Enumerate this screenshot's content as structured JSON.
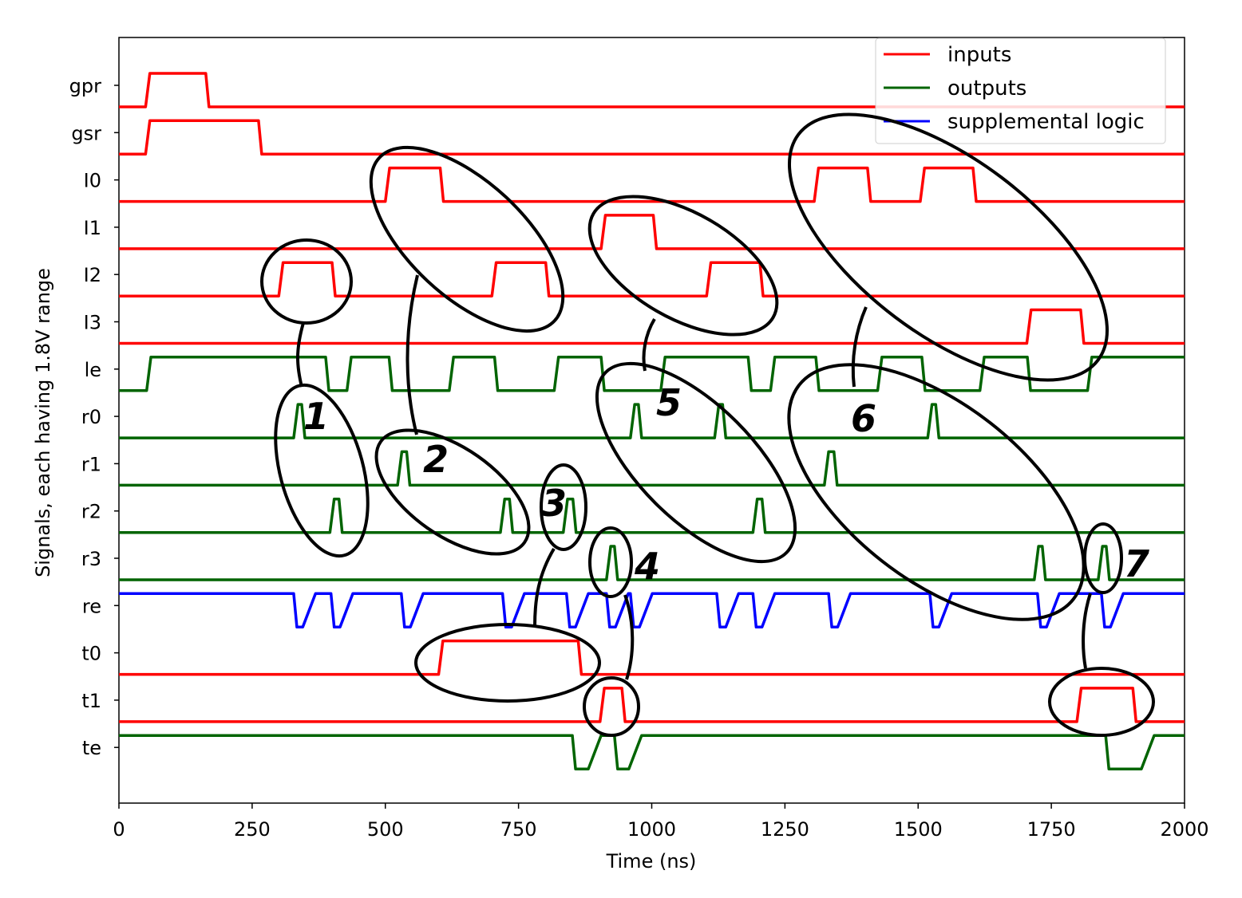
{
  "chart_data": {
    "type": "line",
    "xlabel": "Time (ns)",
    "ylabel": "Signals, each having 1.8V range",
    "xlim": [
      0,
      2000
    ],
    "xticks": [
      0,
      250,
      500,
      750,
      1000,
      1250,
      1500,
      1750,
      2000
    ],
    "grid": false,
    "legend_position": "top-right",
    "legend": [
      {
        "label": "inputs",
        "color": "#ff0000"
      },
      {
        "label": "outputs",
        "color": "#006400"
      },
      {
        "label": "supplemental logic",
        "color": "#0000ff"
      }
    ],
    "signals": [
      {
        "name": "gpr",
        "group": "inputs",
        "idle": 0,
        "toggles": [
          [
            50,
            163
          ]
        ]
      },
      {
        "name": "gsr",
        "group": "inputs",
        "idle": 0,
        "toggles": [
          [
            50,
            262
          ]
        ]
      },
      {
        "name": "I0",
        "group": "inputs",
        "idle": 0,
        "toggles": [
          [
            500,
            603
          ],
          [
            1305,
            1405
          ],
          [
            1504,
            1603
          ]
        ]
      },
      {
        "name": "I1",
        "group": "inputs",
        "idle": 0,
        "toggles": [
          [
            905,
            1003
          ]
        ]
      },
      {
        "name": "I2",
        "group": "inputs",
        "idle": 0,
        "toggles": [
          [
            300,
            400
          ],
          [
            700,
            801
          ],
          [
            1103,
            1203
          ]
        ]
      },
      {
        "name": "I3",
        "group": "inputs",
        "idle": 0,
        "toggles": [
          [
            1704,
            1805
          ]
        ]
      },
      {
        "name": "le",
        "group": "outputs",
        "idle": 0,
        "toggles": [
          [
            52,
            388
          ],
          [
            428,
            507
          ],
          [
            620,
            705
          ],
          [
            817,
            905
          ],
          [
            1017,
            1181
          ],
          [
            1223,
            1308
          ],
          [
            1424,
            1507
          ],
          [
            1616,
            1705
          ],
          [
            1818,
            2000
          ]
        ]
      },
      {
        "name": "r0",
        "group": "outputs",
        "idle": 0,
        "toggles": [
          [
            328,
            343
          ],
          [
            960,
            975
          ],
          [
            1118,
            1133
          ],
          [
            1518,
            1533
          ]
        ]
      },
      {
        "name": "r1",
        "group": "outputs",
        "idle": 0,
        "toggles": [
          [
            523,
            540
          ],
          [
            1324,
            1342
          ]
        ]
      },
      {
        "name": "r2",
        "group": "outputs",
        "idle": 0,
        "toggles": [
          [
            396,
            413
          ],
          [
            716,
            733
          ],
          [
            834,
            852
          ],
          [
            1190,
            1207
          ]
        ]
      },
      {
        "name": "r3",
        "group": "outputs",
        "idle": 0,
        "toggles": [
          [
            915,
            930
          ],
          [
            1718,
            1733
          ],
          [
            1838,
            1853
          ]
        ]
      },
      {
        "name": "re",
        "group": "supplemental logic",
        "idle": 1,
        "toggles": [
          [
            328,
            345
          ],
          [
            398,
            415
          ],
          [
            530,
            547
          ],
          [
            720,
            737
          ],
          [
            840,
            857
          ],
          [
            915,
            932
          ],
          [
            960,
            977
          ],
          [
            1122,
            1139
          ],
          [
            1190,
            1207
          ],
          [
            1332,
            1349
          ],
          [
            1522,
            1539
          ],
          [
            1724,
            1741
          ],
          [
            1844,
            1861
          ]
        ]
      },
      {
        "name": "t0",
        "group": "inputs",
        "idle": 0,
        "toggles": [
          [
            600,
            862
          ]
        ]
      },
      {
        "name": "t1",
        "group": "inputs",
        "idle": 0,
        "toggles": [
          [
            903,
            944
          ],
          [
            1798,
            1903
          ]
        ]
      },
      {
        "name": "te",
        "group": "outputs",
        "idle": 1,
        "toggles": [
          [
            851,
            881
          ],
          [
            930,
            957
          ],
          [
            1852,
            1919
          ]
        ]
      }
    ],
    "annotations": [
      "1",
      "2",
      "3",
      "4",
      "5",
      "6",
      "7"
    ]
  }
}
